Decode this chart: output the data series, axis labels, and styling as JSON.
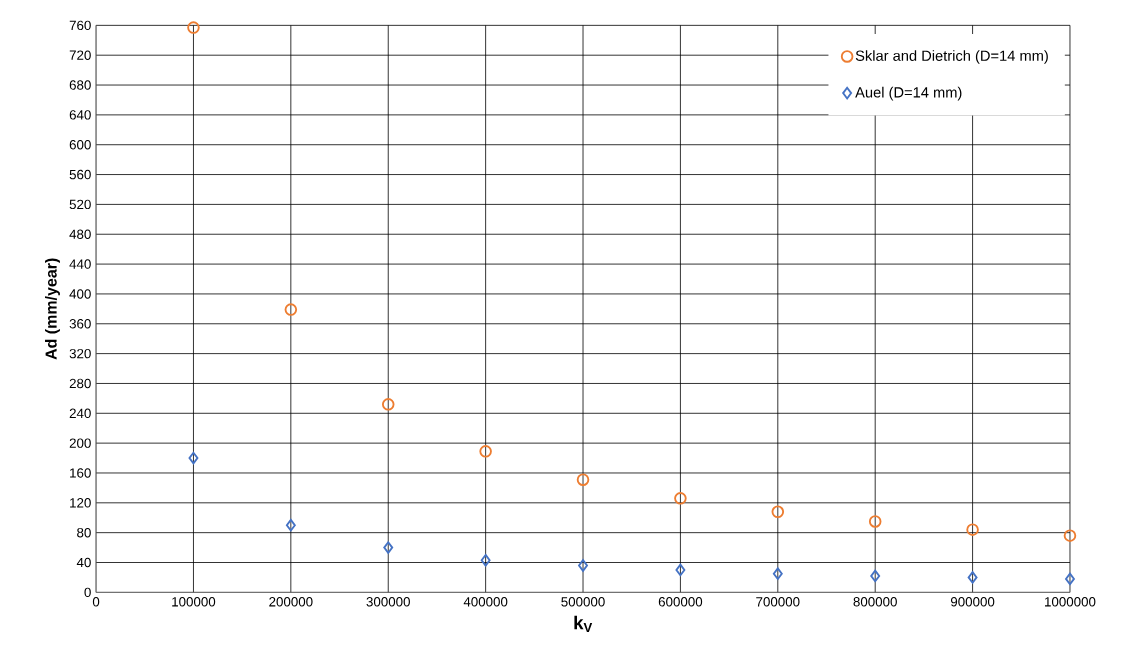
{
  "chart_data": {
    "type": "scatter",
    "xlabel": "k$_{V}$",
    "ylabel": "Ad   (mm/year)",
    "x": [
      100000,
      200000,
      300000,
      400000,
      500000,
      600000,
      700000,
      800000,
      900000,
      1000000
    ],
    "series": [
      {
        "name": "Sklar and Dietrich (D=14 mm)",
        "color": "#ed7d31",
        "marker": "circle",
        "values": [
          757,
          379,
          252,
          189,
          151,
          126,
          108,
          95,
          84,
          76
        ]
      },
      {
        "name": "Auel (D=14 mm)",
        "color": "#4472c4",
        "marker": "diamond",
        "values": [
          180,
          90,
          60,
          43,
          36,
          30,
          25,
          22,
          20,
          18
        ]
      }
    ],
    "xlim": [
      0,
      1000000
    ],
    "xticks": [
      0,
      100000,
      200000,
      300000,
      400000,
      500000,
      600000,
      700000,
      800000,
      900000,
      1000000
    ],
    "ylim": [
      0,
      760
    ],
    "yticks": [
      0,
      40,
      80,
      120,
      160,
      200,
      240,
      280,
      320,
      360,
      400,
      440,
      480,
      520,
      560,
      600,
      640,
      680,
      720,
      760
    ],
    "grid": true,
    "legend": "top right"
  }
}
